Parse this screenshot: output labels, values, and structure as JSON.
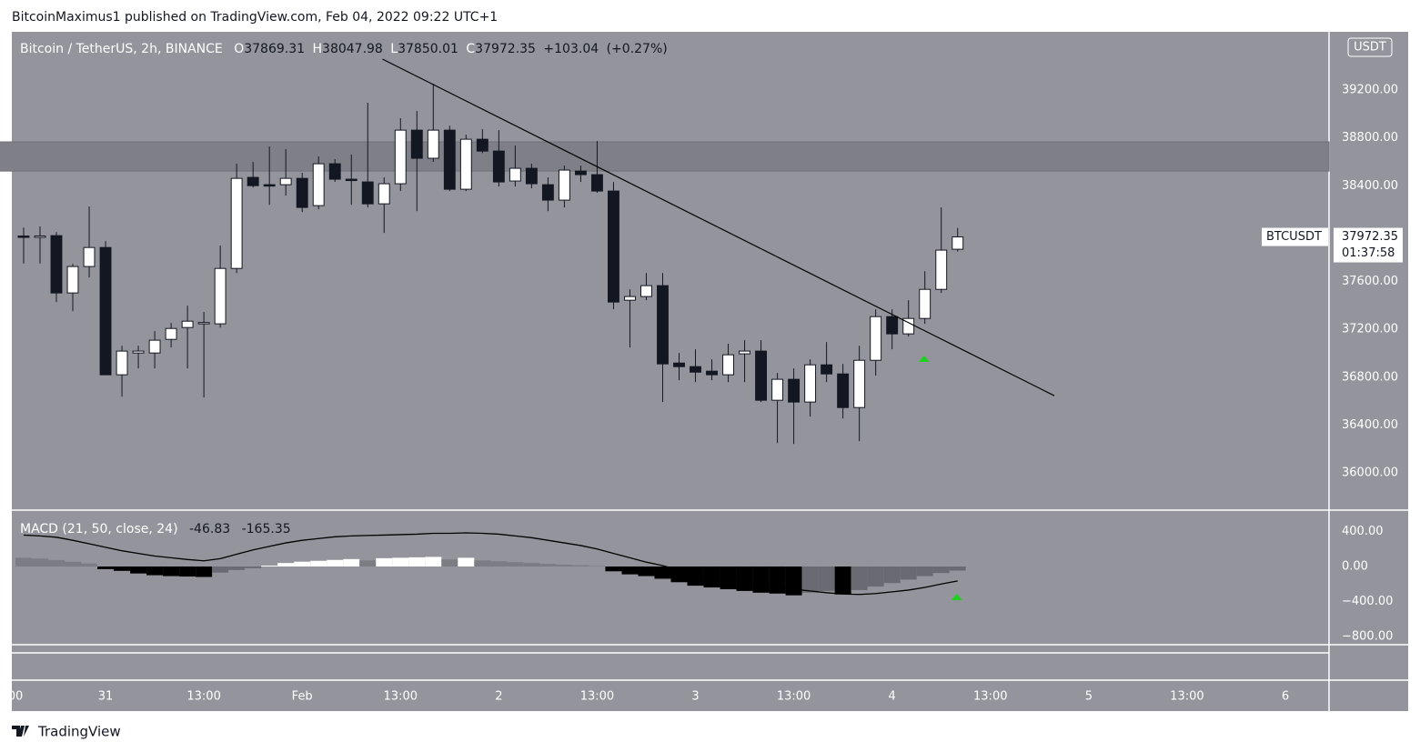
{
  "header": {
    "text": "BitcoinMaximus1 published on TradingView.com, Feb 04, 2022 09:22 UTC+1"
  },
  "footer": {
    "brand": "TradingView"
  },
  "chart_data": [
    {
      "type": "candlestick",
      "title": "Bitcoin / TetherUS, 2h, BINANCE",
      "legend": [
        {
          "name": "O",
          "value": 37869.31
        },
        {
          "name": "H",
          "value": 38047.98
        },
        {
          "name": "L",
          "value": 37850.01
        },
        {
          "name": "C",
          "value": 37972.35
        }
      ],
      "change": {
        "value": 103.04,
        "label": "+103.04"
      },
      "change_percent": {
        "value": 0.27,
        "label": "(+0.27%)"
      },
      "currency": "USDT",
      "symbol": "BTCUSDT",
      "last_price": 37972.35,
      "countdown": "01:37:58",
      "up_color": "#ffffff",
      "down_color": "#131722",
      "zone": [
        38523,
        38767
      ],
      "zone_color": "#7e7f87",
      "trendline": {
        "x": [
          33.8,
          115.8
        ],
        "y": [
          39459,
          36645
        ]
      },
      "xlim": [
        -11.44,
        149.33
      ],
      "xticks": [
        {
          "value": -11,
          "label": "00"
        },
        {
          "value": 0,
          "label": "31"
        },
        {
          "value": 12,
          "label": "13:00"
        },
        {
          "value": 24,
          "label": "Feb"
        },
        {
          "value": 36,
          "label": "13:00"
        },
        {
          "value": 48,
          "label": "2"
        },
        {
          "value": 60,
          "label": "13:00"
        },
        {
          "value": 72,
          "label": "3"
        },
        {
          "value": 84,
          "label": "13:00"
        },
        {
          "value": 96,
          "label": "4"
        },
        {
          "value": 108,
          "label": "13:00"
        },
        {
          "value": 120,
          "label": "5"
        },
        {
          "value": 132,
          "label": "13:00"
        },
        {
          "value": 144,
          "label": "6"
        }
      ],
      "ylim": [
        35696,
        39687
      ],
      "yticks": [
        {
          "value": 36000,
          "label": "36000.00"
        },
        {
          "value": 36400,
          "label": "36400.00"
        },
        {
          "value": 36800,
          "label": "36800.00"
        },
        {
          "value": 37200,
          "label": "37200.00"
        },
        {
          "value": 37600,
          "label": "37600.00"
        },
        {
          "value": 38400,
          "label": "38400.00"
        },
        {
          "value": 38800,
          "label": "38800.00"
        },
        {
          "value": 39200,
          "label": "39200.00"
        }
      ],
      "x": [
        -10,
        -8,
        -6,
        -4,
        -2,
        0,
        2,
        4,
        6,
        8,
        10,
        12,
        14,
        16,
        18,
        20,
        22,
        24,
        26,
        28,
        30,
        32,
        34,
        36,
        38,
        40,
        42,
        44,
        46,
        48,
        50,
        52,
        54,
        56,
        58,
        60,
        62,
        64,
        66,
        68,
        70,
        72,
        74,
        76,
        78,
        80,
        82,
        84,
        86,
        88,
        90,
        92,
        94,
        96,
        98,
        100,
        102,
        104
      ],
      "open": [
        37980,
        37975,
        37983,
        37504,
        37725,
        37884,
        36820,
        37002,
        37002,
        37116,
        37215,
        37253,
        37246,
        37709,
        38470,
        38409,
        38409,
        38462,
        38234,
        38584,
        38455,
        38432,
        38249,
        38417,
        38865,
        38630,
        38865,
        38371,
        38789,
        38690,
        38440,
        38546,
        38409,
        38280,
        38523,
        38493,
        38356,
        37443,
        37474,
        37565,
        36918,
        36888,
        36850,
        36820,
        36995,
        37018,
        36607,
        36782,
        36592,
        36903,
        36827,
        36546,
        36941,
        37306,
        37162,
        37291,
        37534,
        37869.31
      ],
      "high": [
        38050,
        38060,
        38013,
        37747,
        38227,
        37938,
        37063,
        37063,
        37185,
        37253,
        37398,
        37345,
        37900,
        38584,
        38599,
        38728,
        38706,
        38508,
        38645,
        38622,
        38660,
        39094,
        38470,
        38964,
        39025,
        39253,
        38903,
        38827,
        38873,
        38865,
        38736,
        38584,
        38470,
        38569,
        38569,
        38774,
        38432,
        37534,
        37671,
        37671,
        37002,
        37033,
        36949,
        37079,
        37109,
        37109,
        36835,
        36873,
        36949,
        37094,
        36911,
        37063,
        37367,
        37367,
        37443,
        37686,
        38219,
        38047.98
      ],
      "low": [
        37750,
        37750,
        37428,
        37352,
        37633,
        36820,
        36637,
        36873,
        36873,
        37048,
        36873,
        36630,
        37215,
        37671,
        38386,
        38241,
        38318,
        38181,
        38204,
        38432,
        38241,
        38219,
        38006,
        38356,
        38188,
        38600,
        38356,
        38356,
        38674,
        38394,
        38394,
        38379,
        38188,
        38219,
        38432,
        38341,
        37367,
        37048,
        37443,
        36592,
        36774,
        36759,
        36774,
        36759,
        36759,
        36592,
        36249,
        36242,
        36470,
        36759,
        36455,
        36265,
        36812,
        37033,
        37139,
        37246,
        37504,
        37850.01
      ],
      "close": [
        37975,
        37980,
        37504,
        37725,
        37884,
        36820,
        37018,
        37018,
        37109,
        37207,
        37268,
        37257,
        37709,
        38462,
        38401,
        38406,
        38462,
        38219,
        38584,
        38455,
        38450,
        38249,
        38417,
        38865,
        38630,
        38865,
        38371,
        38789,
        38690,
        38432,
        38546,
        38417,
        38280,
        38531,
        38493,
        38356,
        37428,
        37474,
        37565,
        36911,
        36888,
        36842,
        36820,
        36987,
        37018,
        36607,
        36782,
        36592,
        36903,
        36827,
        36546,
        36941,
        37306,
        37162,
        37291,
        37534,
        37862,
        37972.35
      ]
    },
    {
      "type": "macd",
      "title": "MACD (21, 50, close, 24)",
      "legend_values": [
        -46.83,
        -165.35
      ],
      "ylim": [
        -885,
        635
      ],
      "yticks": [
        {
          "value": 400,
          "label": "400.00"
        },
        {
          "value": 0,
          "label": "0.00"
        },
        {
          "value": -400,
          "label": "−400.00"
        },
        {
          "value": -800,
          "label": "−800.00"
        }
      ],
      "histogram_colors": {
        "rising_above": "#ffffff",
        "falling_above": "#7b7c84",
        "falling_below": "#000000",
        "rising_below": "#6a6b72"
      },
      "line_color": "#000000",
      "x": [
        -10,
        -8,
        -6,
        -4,
        -2,
        0,
        2,
        4,
        6,
        8,
        10,
        12,
        14,
        16,
        18,
        20,
        22,
        24,
        26,
        28,
        30,
        32,
        34,
        36,
        38,
        40,
        42,
        44,
        46,
        48,
        50,
        52,
        54,
        56,
        58,
        60,
        62,
        64,
        66,
        68,
        70,
        72,
        74,
        76,
        78,
        80,
        82,
        84,
        86,
        88,
        90,
        92,
        94,
        96,
        98,
        100,
        102,
        104
      ],
      "histogram": [
        100,
        90,
        75,
        55,
        35,
        -30,
        -50,
        -80,
        -100,
        -110,
        -115,
        -120,
        -70,
        -40,
        -20,
        10,
        40,
        55,
        65,
        75,
        85,
        70,
        95,
        100,
        105,
        110,
        80,
        100,
        70,
        60,
        50,
        40,
        30,
        20,
        15,
        5,
        -55,
        -90,
        -110,
        -140,
        -180,
        -220,
        -240,
        -260,
        -280,
        -300,
        -310,
        -330,
        -300,
        -280,
        -320,
        -270,
        -230,
        -190,
        -150,
        -110,
        -75,
        -46.83
      ],
      "line": [
        360,
        350,
        335,
        300,
        260,
        220,
        180,
        150,
        120,
        100,
        80,
        65,
        90,
        140,
        190,
        230,
        270,
        300,
        320,
        340,
        350,
        355,
        360,
        365,
        370,
        380,
        380,
        385,
        380,
        370,
        350,
        330,
        300,
        270,
        240,
        200,
        150,
        100,
        50,
        10,
        -40,
        -80,
        -120,
        -150,
        -180,
        -210,
        -240,
        -260,
        -280,
        -300,
        -315,
        -320,
        -310,
        -290,
        -270,
        -240,
        -200,
        -165.35
      ]
    }
  ]
}
